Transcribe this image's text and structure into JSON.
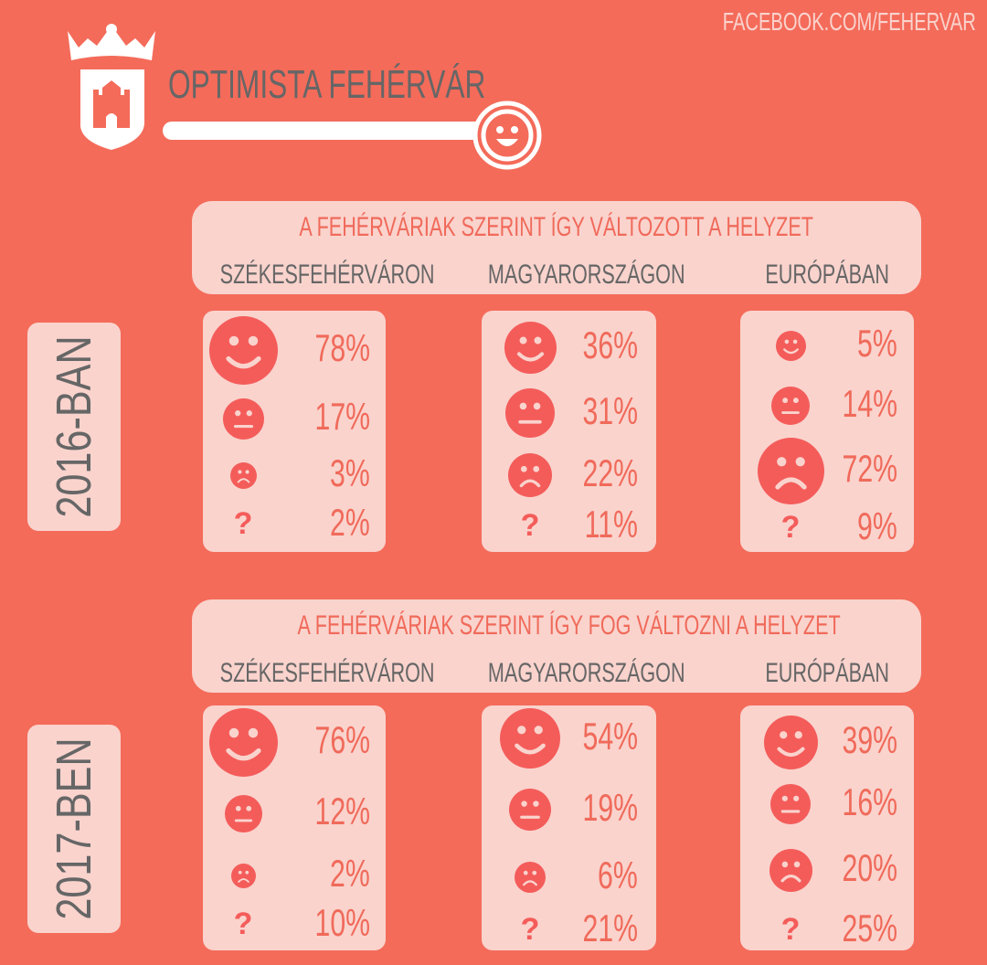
{
  "header": {
    "facebook": "FACEBOOK.COM/FEHERVAR",
    "title": "OPTIMISTA FEHÉRVÁR"
  },
  "colors": {
    "background": "#F46B5A",
    "panel": "#FAD3CD",
    "face": "#F45C5A",
    "percent": "#F06A5A",
    "text": "#666666"
  },
  "sections": [
    {
      "year": "2016-BAN",
      "heading": "A FEHÉRVÁRIAK SZERINT ÍGY VÁLTOZOTT A HELYZET",
      "columns": [
        {
          "label": "SZÉKESFEHÉRVÁRON",
          "values": {
            "happy": "78%",
            "neutral": "17%",
            "sad": "3%",
            "unknown": "2%"
          }
        },
        {
          "label": "MAGYARORSZÁGON",
          "values": {
            "happy": "36%",
            "neutral": "31%",
            "sad": "22%",
            "unknown": "11%"
          }
        },
        {
          "label": "EURÓPÁBAN",
          "values": {
            "happy": "5%",
            "neutral": "14%",
            "sad": "72%",
            "unknown": "9%"
          }
        }
      ]
    },
    {
      "year": "2017-BEN",
      "heading": "A FEHÉRVÁRIAK SZERINT ÍGY FOG VÁLTOZNI A HELYZET",
      "columns": [
        {
          "label": "SZÉKESFEHÉRVÁRON",
          "values": {
            "happy": "76%",
            "neutral": "12%",
            "sad": "2%",
            "unknown": "10%"
          }
        },
        {
          "label": "MAGYARORSZÁGON",
          "values": {
            "happy": "54%",
            "neutral": "19%",
            "sad": "6%",
            "unknown": "21%"
          }
        },
        {
          "label": "EURÓPÁBAN",
          "values": {
            "happy": "39%",
            "neutral": "16%",
            "sad": "20%",
            "unknown": "25%"
          }
        }
      ]
    }
  ],
  "question_mark": "?"
}
